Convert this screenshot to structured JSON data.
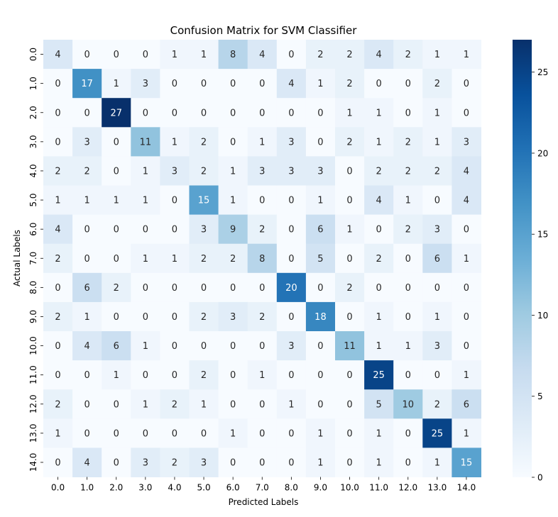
{
  "chart_data": {
    "type": "heatmap",
    "title": "Confusion Matrix for SVM Classifier",
    "xlabel": "Predicted Labels",
    "ylabel": "Actual Labels",
    "x_categories": [
      "0.0",
      "1.0",
      "2.0",
      "3.0",
      "4.0",
      "5.0",
      "6.0",
      "7.0",
      "8.0",
      "9.0",
      "10.0",
      "11.0",
      "12.0",
      "13.0",
      "14.0"
    ],
    "y_categories": [
      "0.0",
      "1.0",
      "2.0",
      "3.0",
      "4.0",
      "5.0",
      "6.0",
      "7.0",
      "8.0",
      "9.0",
      "10.0",
      "11.0",
      "12.0",
      "13.0",
      "14.0"
    ],
    "values": [
      [
        4,
        0,
        0,
        0,
        1,
        1,
        8,
        4,
        0,
        2,
        2,
        4,
        2,
        1,
        1
      ],
      [
        0,
        17,
        1,
        3,
        0,
        0,
        0,
        0,
        4,
        1,
        2,
        0,
        0,
        2,
        0
      ],
      [
        0,
        0,
        27,
        0,
        0,
        0,
        0,
        0,
        0,
        0,
        1,
        1,
        0,
        1,
        0
      ],
      [
        0,
        3,
        0,
        11,
        1,
        2,
        0,
        1,
        3,
        0,
        2,
        1,
        2,
        1,
        3
      ],
      [
        2,
        2,
        0,
        1,
        3,
        2,
        1,
        3,
        3,
        3,
        0,
        2,
        2,
        2,
        4
      ],
      [
        1,
        1,
        1,
        1,
        0,
        15,
        1,
        0,
        0,
        1,
        0,
        4,
        1,
        0,
        4
      ],
      [
        4,
        0,
        0,
        0,
        0,
        3,
        9,
        2,
        0,
        6,
        1,
        0,
        2,
        3,
        0
      ],
      [
        2,
        0,
        0,
        1,
        1,
        2,
        2,
        8,
        0,
        5,
        0,
        2,
        0,
        6,
        1
      ],
      [
        0,
        6,
        2,
        0,
        0,
        0,
        0,
        0,
        20,
        0,
        2,
        0,
        0,
        0,
        0
      ],
      [
        2,
        1,
        0,
        0,
        0,
        2,
        3,
        2,
        0,
        18,
        0,
        1,
        0,
        1,
        0
      ],
      [
        0,
        4,
        6,
        1,
        0,
        0,
        0,
        0,
        3,
        0,
        11,
        1,
        1,
        3,
        0
      ],
      [
        0,
        0,
        1,
        0,
        0,
        2,
        0,
        1,
        0,
        0,
        0,
        25,
        0,
        0,
        1
      ],
      [
        2,
        0,
        0,
        1,
        2,
        1,
        0,
        0,
        1,
        0,
        0,
        5,
        10,
        2,
        6
      ],
      [
        1,
        0,
        0,
        0,
        0,
        0,
        1,
        0,
        0,
        1,
        0,
        1,
        0,
        25,
        1
      ],
      [
        0,
        4,
        0,
        3,
        2,
        3,
        0,
        0,
        0,
        1,
        0,
        1,
        0,
        1,
        15
      ]
    ],
    "colorbar": {
      "min": 0,
      "max": 27,
      "ticks": [
        0,
        5,
        10,
        15,
        20,
        25
      ],
      "colormap": "Blues"
    }
  }
}
